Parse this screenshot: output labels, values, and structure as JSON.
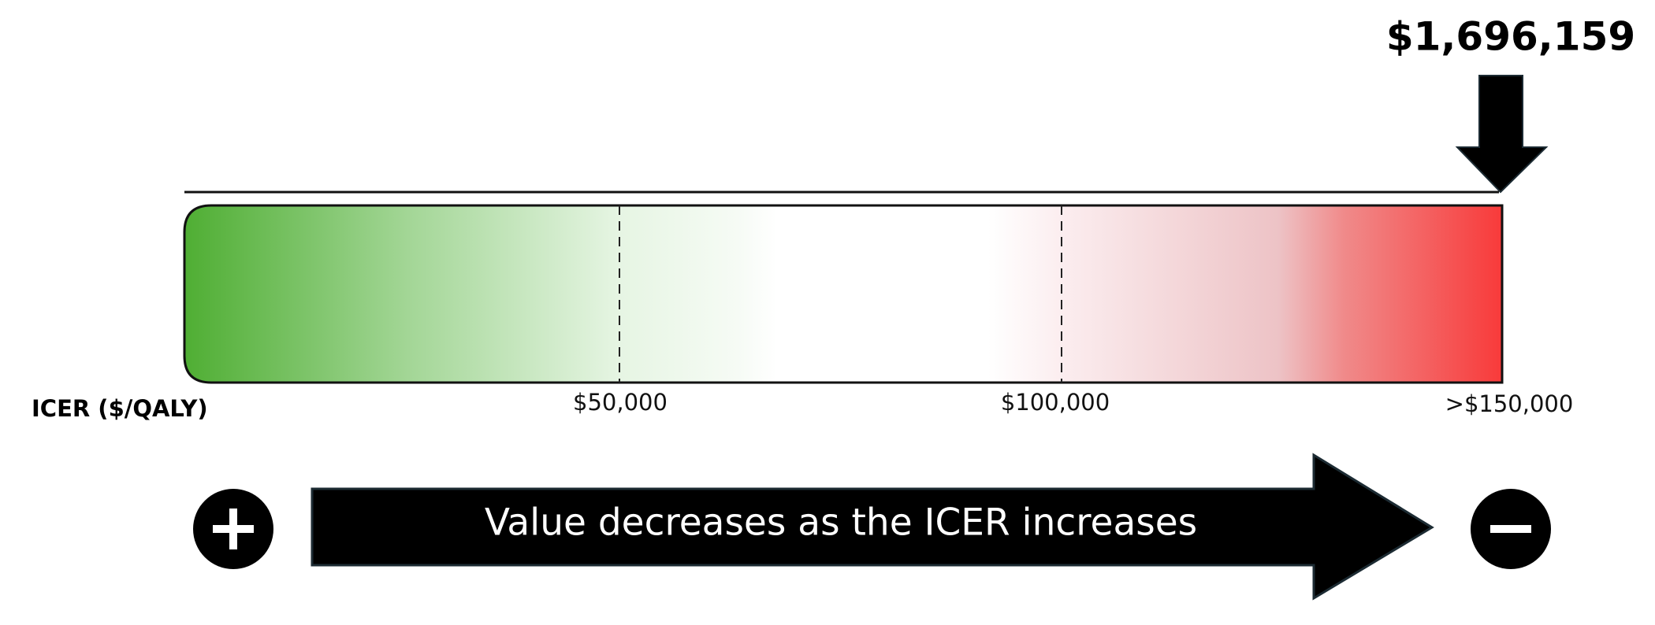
{
  "indicator": {
    "label": "$1,696,159"
  },
  "scale": {
    "axis_label": "ICER ($/QALY)",
    "ticks": [
      "$50,000",
      "$100,000",
      ">$150,000"
    ]
  },
  "arrow": {
    "label": "Value decreases as the ICER increases"
  }
}
